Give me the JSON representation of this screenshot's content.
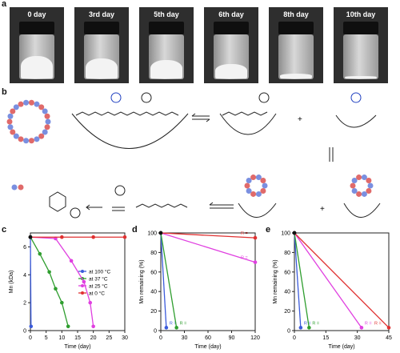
{
  "panel_labels": {
    "a": "a",
    "b": "b",
    "c": "c",
    "d": "d",
    "e": "e"
  },
  "photos": [
    {
      "label": "0 day",
      "powder": 0.55
    },
    {
      "label": "3rd day",
      "powder": 0.5
    },
    {
      "label": "5th day",
      "powder": 0.45
    },
    {
      "label": "6th day",
      "powder": 0.35
    },
    {
      "label": "8th day",
      "powder": 0.12
    },
    {
      "label": "10th day",
      "powder": 0.05
    }
  ],
  "scheme": {
    "plus_1": "+",
    "plus_2": "+"
  },
  "colors": {
    "blue": "#3b5bdb",
    "green": "#2f9e2f",
    "magenta": "#e040e0",
    "red": "#e03131",
    "black": "#111111",
    "bead_blue": "#7a8fe0",
    "bead_red": "#e06a6a"
  },
  "chart_data": [
    {
      "type": "line",
      "panel": "c",
      "xlabel": "Time (day)",
      "ylabel": "Mn (kDa)",
      "xlim": [
        0,
        30
      ],
      "ylim": [
        0,
        7
      ],
      "xticks": [
        "0",
        "5",
        "10",
        "15",
        "20",
        "25",
        "30"
      ],
      "yticks": [
        "0",
        "2",
        "4",
        "6"
      ],
      "series": [
        {
          "name": "at 100 °C",
          "color": "#3b5bdb",
          "x": [
            0,
            0.2
          ],
          "y": [
            6.7,
            0.3
          ]
        },
        {
          "name": "at 37 °C",
          "color": "#2f9e2f",
          "x": [
            0,
            3,
            6,
            8,
            10,
            12
          ],
          "y": [
            6.7,
            5.5,
            4.2,
            3.0,
            2.0,
            0.3
          ]
        },
        {
          "name": "at 25 °C",
          "color": "#e040e0",
          "x": [
            0,
            8,
            13,
            17,
            19,
            20
          ],
          "y": [
            6.7,
            6.6,
            5.0,
            3.5,
            2.0,
            0.3
          ]
        },
        {
          "name": "at 0 °C",
          "color": "#e03131",
          "x": [
            0,
            10,
            20,
            30
          ],
          "y": [
            6.7,
            6.7,
            6.7,
            6.7
          ]
        }
      ]
    },
    {
      "type": "line",
      "panel": "d",
      "xlabel": "Time (day)",
      "ylabel": "Mn remaining (%)",
      "xlim": [
        0,
        120
      ],
      "ylim": [
        0,
        100
      ],
      "xticks": [
        "0",
        "30",
        "60",
        "90",
        "120"
      ],
      "yticks": [
        "0",
        "20",
        "40",
        "60",
        "80",
        "100"
      ],
      "r_label": "R =",
      "series": [
        {
          "color": "#3b5bdb",
          "x": [
            0,
            7
          ],
          "y": [
            100,
            3
          ]
        },
        {
          "color": "#2f9e2f",
          "x": [
            0,
            20
          ],
          "y": [
            100,
            3
          ]
        },
        {
          "color": "#e040e0",
          "x": [
            0,
            120
          ],
          "y": [
            100,
            70
          ]
        },
        {
          "color": "#e03131",
          "x": [
            0,
            120
          ],
          "y": [
            100,
            95
          ]
        }
      ]
    },
    {
      "type": "line",
      "panel": "e",
      "xlabel": "Time (day)",
      "ylabel": "Mn remaining (%)",
      "xlim": [
        0,
        45
      ],
      "ylim": [
        0,
        100
      ],
      "xticks": [
        "0",
        "15",
        "30",
        "45"
      ],
      "yticks": [
        "0",
        "20",
        "40",
        "60",
        "80",
        "100"
      ],
      "r_label": "R =",
      "series": [
        {
          "color": "#3b5bdb",
          "x": [
            0,
            3
          ],
          "y": [
            100,
            3
          ]
        },
        {
          "color": "#2f9e2f",
          "x": [
            0,
            7
          ],
          "y": [
            100,
            3
          ]
        },
        {
          "color": "#e040e0",
          "x": [
            0,
            32
          ],
          "y": [
            100,
            3
          ]
        },
        {
          "color": "#e03131",
          "x": [
            0,
            45
          ],
          "y": [
            100,
            3
          ]
        }
      ]
    }
  ]
}
